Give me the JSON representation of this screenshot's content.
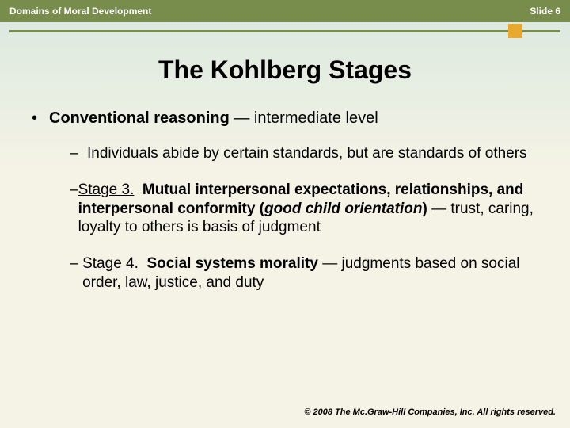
{
  "header": {
    "left": "Domains of Moral Development",
    "right": "Slide 6",
    "bar_color": "#788c4b",
    "accent_color": "#e9a92f"
  },
  "title": "The Kohlberg Stages",
  "bullet": {
    "lead_bold": "Conventional reasoning",
    "lead_rest": " — intermediate level"
  },
  "subs": {
    "s1": {
      "text": "Individuals abide by certain standards, but are standards of others"
    },
    "s2": {
      "stage_label": "Stage 3.",
      "bold_part": "Mutual interpersonal expectations, relationships, and interpersonal conformity (",
      "ital_part": "good child orientation",
      "bold_close": ")",
      "rest": " — trust, caring, loyalty to others is basis of judgment"
    },
    "s3": {
      "stage_label": "Stage 4.",
      "bold_part": "Social systems morality",
      "rest": " — judgments based on social order, law, justice, and duty"
    }
  },
  "footer": "© 2008 The Mc.Graw-Hill Companies, Inc. All rights reserved."
}
